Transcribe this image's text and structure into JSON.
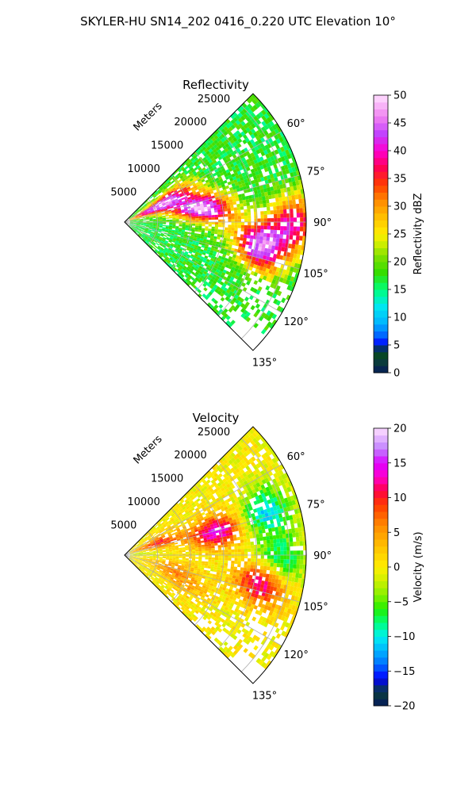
{
  "figure_title": "SKYLER-HU  SN14_202  0416_0.220 UTC Elevation 10°",
  "chart_data": [
    {
      "type": "heatmap",
      "title": "Reflectivity",
      "radial_label": "Meters",
      "radial_ticks": [
        "5000",
        "10000",
        "15000",
        "20000",
        "25000"
      ],
      "radial_tick_values": [
        5000,
        10000,
        15000,
        20000,
        25000
      ],
      "range_max": 27500,
      "angle_range_deg": [
        45,
        135
      ],
      "angle_ticks": [
        "60°",
        "75°",
        "90°",
        "105°",
        "120°",
        "135°"
      ],
      "angle_tick_values": [
        60,
        75,
        90,
        105,
        120,
        135
      ],
      "colorbar": {
        "label": "Reflectivity dBZ",
        "min": 0,
        "max": 50,
        "ticks": [
          "0",
          "5",
          "10",
          "15",
          "20",
          "25",
          "30",
          "35",
          "40",
          "45",
          "50"
        ],
        "tick_values": [
          0,
          5,
          10,
          15,
          20,
          25,
          30,
          35,
          40,
          45,
          50
        ]
      },
      "field_features": [
        {
          "angle": 62,
          "range": 8000,
          "value": 36
        },
        {
          "angle": 66,
          "range": 4200,
          "value": 38
        },
        {
          "angle": 77,
          "range": 10500,
          "value": 41
        },
        {
          "angle": 83,
          "range": 13500,
          "value": 33
        },
        {
          "angle": 89,
          "range": 25500,
          "value": 38
        },
        {
          "angle": 101,
          "range": 21500,
          "value": 37
        },
        {
          "angle": 96,
          "range": 19500,
          "value": 30
        }
      ]
    },
    {
      "type": "heatmap",
      "title": "Velocity",
      "radial_label": "Meters",
      "radial_ticks": [
        "5000",
        "10000",
        "15000",
        "20000",
        "25000"
      ],
      "radial_tick_values": [
        5000,
        10000,
        15000,
        20000,
        25000
      ],
      "range_max": 27500,
      "angle_range_deg": [
        45,
        135
      ],
      "angle_ticks": [
        "60°",
        "75°",
        "90°",
        "105°",
        "120°",
        "135°"
      ],
      "angle_tick_values": [
        60,
        75,
        90,
        105,
        120,
        135
      ],
      "colorbar": {
        "label": "Velocity (m/s)",
        "min": -20,
        "max": 20,
        "ticks": [
          "−20",
          "−15",
          "−10",
          "−5",
          "0",
          "5",
          "10",
          "15",
          "20"
        ],
        "tick_values": [
          -20,
          -15,
          -10,
          -5,
          0,
          5,
          10,
          15,
          20
        ]
      },
      "field_features": [
        {
          "angle": 70,
          "range": 5000,
          "value": 10
        },
        {
          "angle": 80,
          "range": 1500,
          "value": -3
        },
        {
          "angle": 105,
          "range": 7000,
          "value": 5
        },
        {
          "angle": 115,
          "range": 10000,
          "value": 4
        },
        {
          "angle": 75,
          "range": 14000,
          "value": 15
        },
        {
          "angle": 72,
          "range": 22000,
          "value": -11
        },
        {
          "angle": 92,
          "range": 23000,
          "value": -11
        },
        {
          "angle": 100,
          "range": 21000,
          "value": 15
        }
      ]
    }
  ]
}
